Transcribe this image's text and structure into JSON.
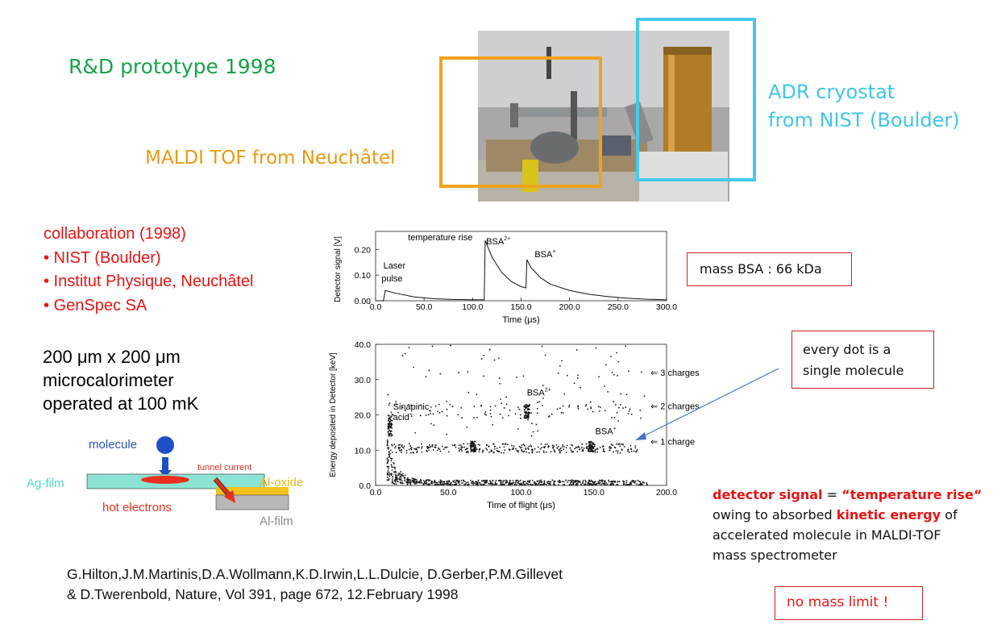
{
  "title": "R&D prototype 1998",
  "maldi_label": "MALDI TOF from Neuchâtel",
  "adr_label": [
    "ADR cryostat",
    "from NIST (Boulder)"
  ],
  "collaboration": [
    "collaboration (1998)",
    "• NIST (Boulder)",
    "• Institut Physique, Neuchâtel",
    "• GenSpec SA"
  ],
  "microcalorimeter": [
    "200 μm x 200 μm",
    "microcalorimeter",
    "operated at 100 mK"
  ],
  "diagram": {
    "molecule": "molecule",
    "tunnel_current": "tunnel current",
    "ag_film": "Ag-film",
    "al_oxide": "Al-oxide",
    "hot_electrons": "hot electrons",
    "al_film": "Al-film"
  },
  "mass_box": "mass BSA : 66 kDa",
  "dot_box": [
    "every dot is a",
    "single molecule"
  ],
  "signal_text": {
    "part1": "detector signal",
    "part2": " = ",
    "part3": "“temperature rise“",
    "line2a": "owing to absorbed ",
    "line2b": "kinetic energy",
    "line2c": " of",
    "line3": "accelerated molecule in MALDI-TOF",
    "line4": "mass spectrometer"
  },
  "no_limit": "no mass limit !",
  "reference": [
    "G.Hilton,J.M.Martinis,D.A.Wollmann,K.D.Irwin,L.L.Dulcie, D.Gerber,P.M.Gillevet",
    "& D.Twerenbold, Nature, Vol 391, page 672, 12.February 1998"
  ],
  "colors": {
    "green": "#16a34a",
    "orange": "#f0a21d",
    "cyan": "#45c9ec",
    "red": "#e81414"
  },
  "chart_data": [
    {
      "type": "line",
      "xlabel": "Time  (μs)",
      "ylabel": "Detector signal [V]",
      "xlim": [
        0,
        300
      ],
      "ylim": [
        0,
        0.27
      ],
      "xticks": [
        "0.0",
        "50.0",
        "100.0",
        "150.0",
        "200.0",
        "250.0",
        "300.0"
      ],
      "yticks": [
        "0.00",
        "0.10",
        "0.20"
      ],
      "annotations": {
        "laser": [
          "Laser",
          "pulse"
        ],
        "temp": "temperature rise",
        "bsa2": "BSA",
        "bsa2_sup": "2+",
        "bsa1": "BSA",
        "bsa1_sup": "+"
      },
      "x": [
        0,
        8,
        10,
        20,
        40,
        60,
        80,
        100,
        112,
        113,
        120,
        130,
        140,
        150,
        155,
        156,
        160,
        170,
        180,
        200,
        220,
        240,
        260,
        280,
        300
      ],
      "y": [
        0.0,
        0.0,
        0.04,
        0.03,
        0.015,
        0.008,
        0.005,
        0.004,
        0.004,
        0.235,
        0.17,
        0.11,
        0.075,
        0.055,
        0.05,
        0.16,
        0.13,
        0.09,
        0.065,
        0.04,
        0.025,
        0.016,
        0.01,
        0.006,
        0.004
      ]
    },
    {
      "type": "scatter",
      "xlabel": "Time of flight  (μs)",
      "ylabel": "Energy deposited in Detector [keV]",
      "xlim": [
        0,
        200
      ],
      "ylim": [
        0,
        40
      ],
      "xticks": [
        "0.0",
        "50.0",
        "100.0",
        "150.0",
        "200.0"
      ],
      "yticks": [
        "0.0",
        "10.0",
        "20.0",
        "30.0",
        "40.0"
      ],
      "annotations": {
        "sinapinic": [
          "Sinapinic",
          "acid"
        ],
        "sinapinic_sup": "+",
        "bsa2": "BSA",
        "bsa2_sup": "2+",
        "bsa1": "BSA",
        "bsa1_sup": "+"
      },
      "right_labels": [
        "⇐  3 charges",
        "⇐  2 charges",
        "⇐  1 charge"
      ],
      "clusters": [
        {
          "x": 67,
          "y": 11,
          "spread_x": 4,
          "spread_y": 1.5
        },
        {
          "x": 104,
          "y": 21,
          "spread_x": 4,
          "spread_y": 2
        },
        {
          "x": 148,
          "y": 11,
          "spread_x": 4,
          "spread_y": 1.5
        },
        {
          "x": 10,
          "y": 17,
          "spread_x": 3,
          "spread_y": 3
        }
      ]
    }
  ]
}
